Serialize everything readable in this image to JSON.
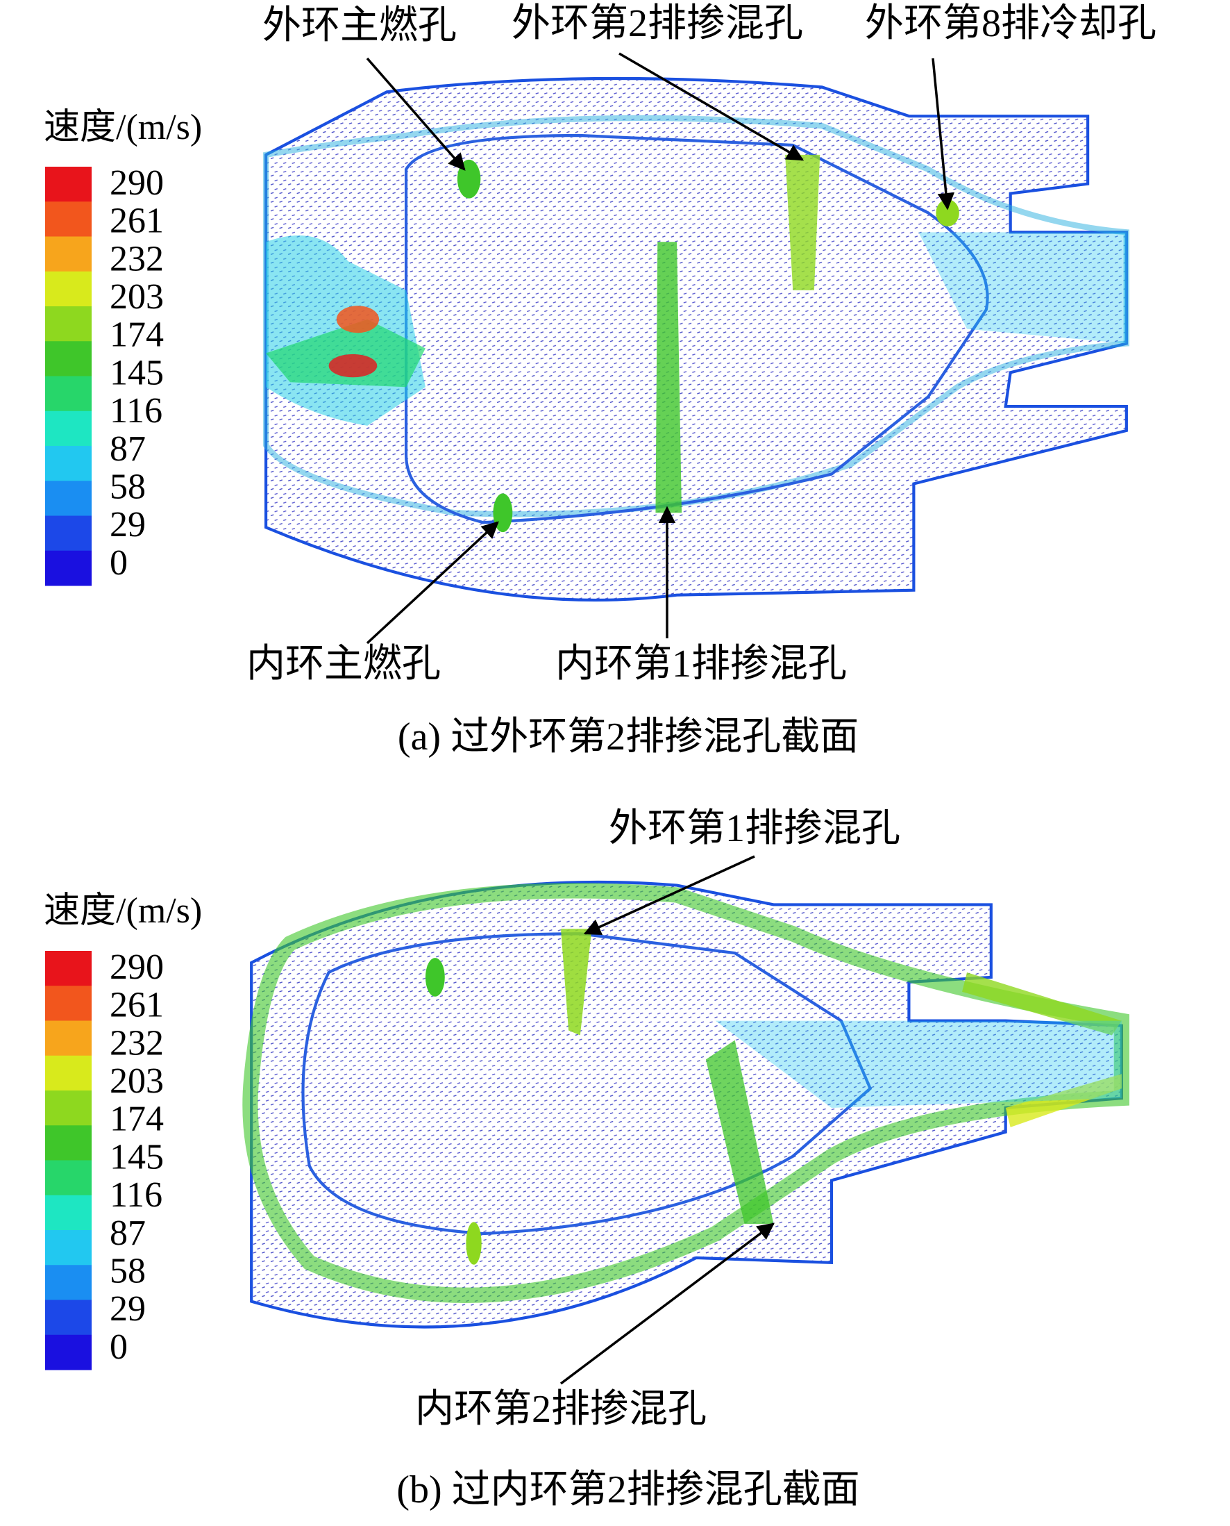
{
  "colorbar_colors": [
    "#e8141b",
    "#f2561d",
    "#f7a51c",
    "#d8ea1c",
    "#8ed81f",
    "#3fc62a",
    "#27d66a",
    "#1ee6c2",
    "#22c8f0",
    "#1a8ef2",
    "#1c48e8",
    "#1a10e0"
  ],
  "panels": [
    {
      "caption": "(a) 过外环第2排掺混孔截面",
      "legend_title": "速度/(m/s)",
      "legend_ticks": [
        290,
        261,
        232,
        203,
        174,
        145,
        116,
        87,
        58,
        29,
        0
      ],
      "annotations": [
        "外环主燃孔",
        "外环第2排掺混孔",
        "外环第8排冷却孔",
        "内环主燃孔",
        "内环第1排掺混孔"
      ]
    },
    {
      "caption": "(b) 过内环第2排掺混孔截面",
      "legend_title": "速度/(m/s)",
      "legend_ticks": [
        290,
        261,
        232,
        203,
        174,
        145,
        116,
        87,
        58,
        29,
        0
      ],
      "annotations": [
        "外环第1排掺混孔",
        "内环第2排掺混孔"
      ]
    }
  ]
}
